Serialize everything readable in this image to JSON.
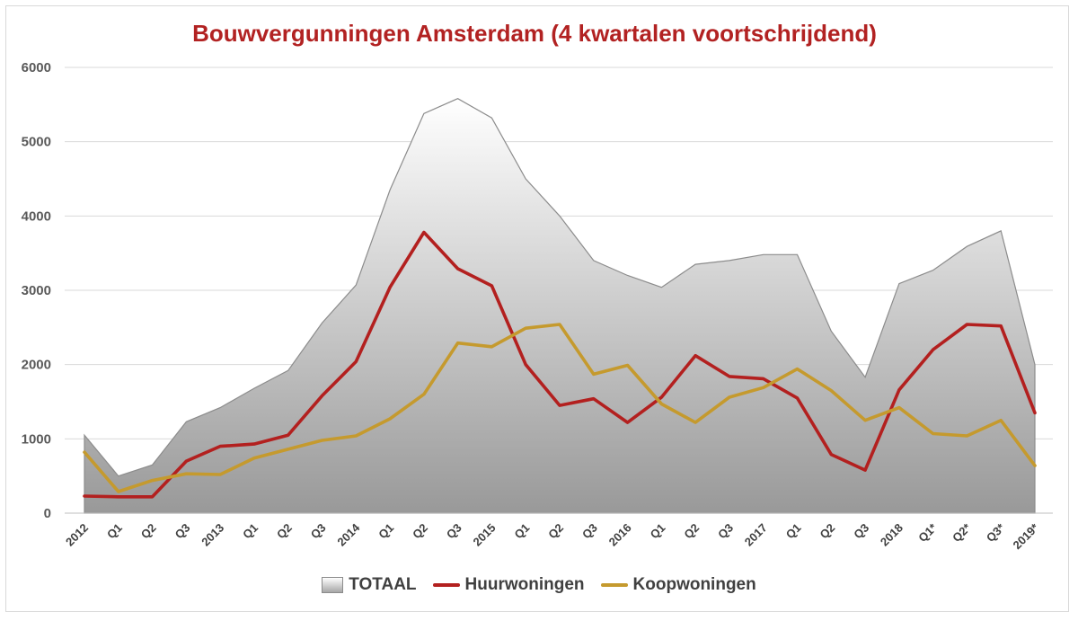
{
  "chart_data": {
    "type": "area+line",
    "title": "Bouwvergunningen Amsterdam (4 kwartalen voortschrijdend)",
    "categories": [
      "2012",
      "Q1",
      "Q2",
      "Q3",
      "2013",
      "Q1",
      "Q2",
      "Q3",
      "2014",
      "Q1",
      "Q2",
      "Q3",
      "2015",
      "Q1",
      "Q2",
      "Q3",
      "2016",
      "Q1",
      "Q2",
      "Q3",
      "2017",
      "Q1",
      "Q2",
      "Q3",
      "2018",
      "Q1*",
      "Q2*",
      "Q3*",
      "2019*"
    ],
    "ylim": [
      0,
      6000
    ],
    "yticks": [
      "0",
      "1000",
      "2000",
      "3000",
      "4000",
      "5000",
      "6000"
    ],
    "grid": true,
    "legend_position": "bottom",
    "series": [
      {
        "name": "TOTAAL",
        "kind": "area",
        "color": "#a6a6a6",
        "values": [
          1050,
          500,
          650,
          1230,
          1420,
          1680,
          1920,
          2560,
          3070,
          4350,
          5380,
          5580,
          5320,
          4500,
          4000,
          3400,
          3200,
          3040,
          3350,
          3400,
          3480,
          3480,
          2450,
          1830,
          3090,
          3270,
          3590,
          3800,
          2000
        ]
      },
      {
        "name": "Huurwoningen",
        "kind": "line",
        "color": "#b3201f",
        "values": [
          230,
          220,
          220,
          700,
          900,
          930,
          1050,
          1580,
          2040,
          3040,
          3780,
          3290,
          3060,
          2000,
          1450,
          1540,
          1220,
          1560,
          2120,
          1840,
          1810,
          1550,
          790,
          580,
          1660,
          2200,
          2540,
          2520,
          1350
        ]
      },
      {
        "name": "Koopwoningen",
        "kind": "line",
        "color": "#c59a2e",
        "values": [
          820,
          290,
          440,
          530,
          520,
          740,
          860,
          980,
          1040,
          1270,
          1600,
          2290,
          2240,
          2490,
          2540,
          1870,
          1990,
          1470,
          1220,
          1560,
          1690,
          1940,
          1650,
          1250,
          1420,
          1070,
          1040,
          1250,
          640
        ]
      }
    ]
  }
}
